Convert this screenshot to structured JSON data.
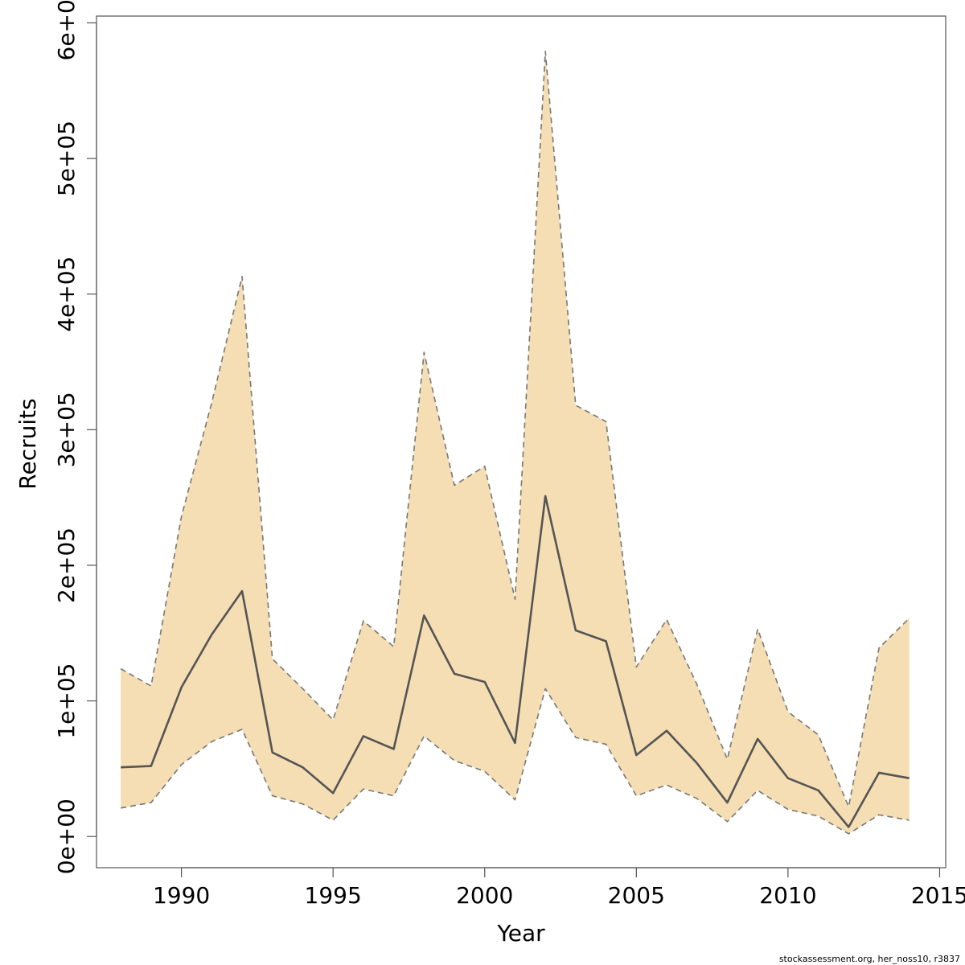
{
  "chart_data": {
    "type": "area",
    "title": "",
    "xlabel": "Year",
    "ylabel": "Recruits",
    "xlim": [
      1987.2,
      2015.2
    ],
    "ylim": [
      -23000,
      605000
    ],
    "x_ticks": [
      1990,
      1995,
      2000,
      2005,
      2010,
      2015
    ],
    "x_tick_labels": [
      "1990",
      "1995",
      "2000",
      "2005",
      "2010",
      "2015"
    ],
    "y_ticks": [
      0,
      100000,
      200000,
      300000,
      400000,
      500000,
      600000
    ],
    "y_tick_labels": [
      "0e+00",
      "1e+05",
      "2e+05",
      "3e+05",
      "4e+05",
      "5e+05",
      "6e+05"
    ],
    "grid": false,
    "x": [
      1988,
      1989,
      1990,
      1991,
      1992,
      1993,
      1994,
      1995,
      1996,
      1997,
      1998,
      1999,
      2000,
      2001,
      2002,
      2003,
      2004,
      2005,
      2006,
      2007,
      2008,
      2009,
      2010,
      2011,
      2012,
      2013,
      2014
    ],
    "series": [
      {
        "name": "Recruits estimate",
        "style": "solid",
        "color": "#555555",
        "values": [
          51000,
          52000,
          110000,
          149000,
          181000,
          62000,
          51000,
          32000,
          74000,
          64500,
          163000,
          120000,
          114000,
          69000,
          251000,
          152000,
          144000,
          60000,
          78000,
          54000,
          25000,
          72000,
          43000,
          34000,
          7000,
          47000,
          43000
        ]
      },
      {
        "name": "Upper bound",
        "style": "dashed",
        "color": "#777777",
        "values": [
          123700,
          111000,
          236000,
          320000,
          413000,
          131000,
          109000,
          86000,
          159000,
          140000,
          357000,
          259000,
          273000,
          175000,
          579000,
          318000,
          306000,
          125000,
          160000,
          112000,
          57000,
          153000,
          92000,
          75000,
          22000,
          139000,
          161000
        ]
      },
      {
        "name": "Lower bound",
        "style": "dashed",
        "color": "#777777",
        "values": [
          21000,
          25000,
          53000,
          70000,
          79000,
          30000,
          24000,
          12000,
          35000,
          30000,
          74000,
          56000,
          48000,
          27000,
          109000,
          73000,
          68000,
          30000,
          38000,
          28000,
          11000,
          34000,
          20000,
          15000,
          2000,
          16000,
          12000
        ]
      }
    ],
    "band_fill": "#F5DEB3",
    "footer": "stockassessment.org, her_noss10, r3837"
  }
}
